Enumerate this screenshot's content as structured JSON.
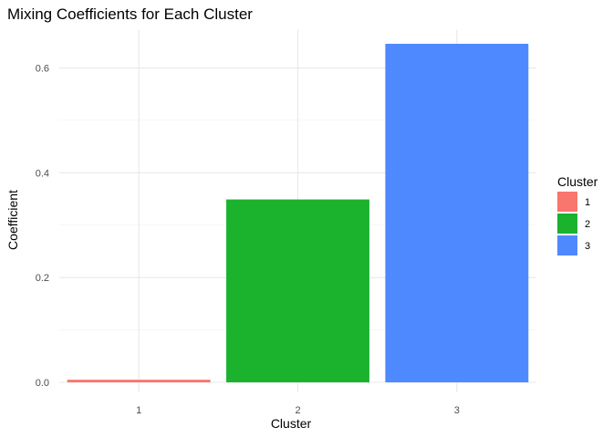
{
  "chart_data": {
    "type": "bar",
    "title": "Mixing Coefficients for Each Cluster",
    "xlabel": "Cluster",
    "ylabel": "Coefficient",
    "categories": [
      "1",
      "2",
      "3"
    ],
    "values": [
      0.005,
      0.349,
      0.646
    ],
    "colors": [
      "#F8766D",
      "#1BB22E",
      "#4F89FF"
    ],
    "ylim": [
      0,
      0.68
    ],
    "yticks": [
      0.0,
      0.2,
      0.4,
      0.6
    ],
    "ytick_labels": [
      "0.0",
      "0.2",
      "0.4",
      "0.6"
    ],
    "grid": true,
    "legend": {
      "title": "Cluster",
      "placement": "right",
      "entries": [
        "1",
        "2",
        "3"
      ]
    }
  }
}
